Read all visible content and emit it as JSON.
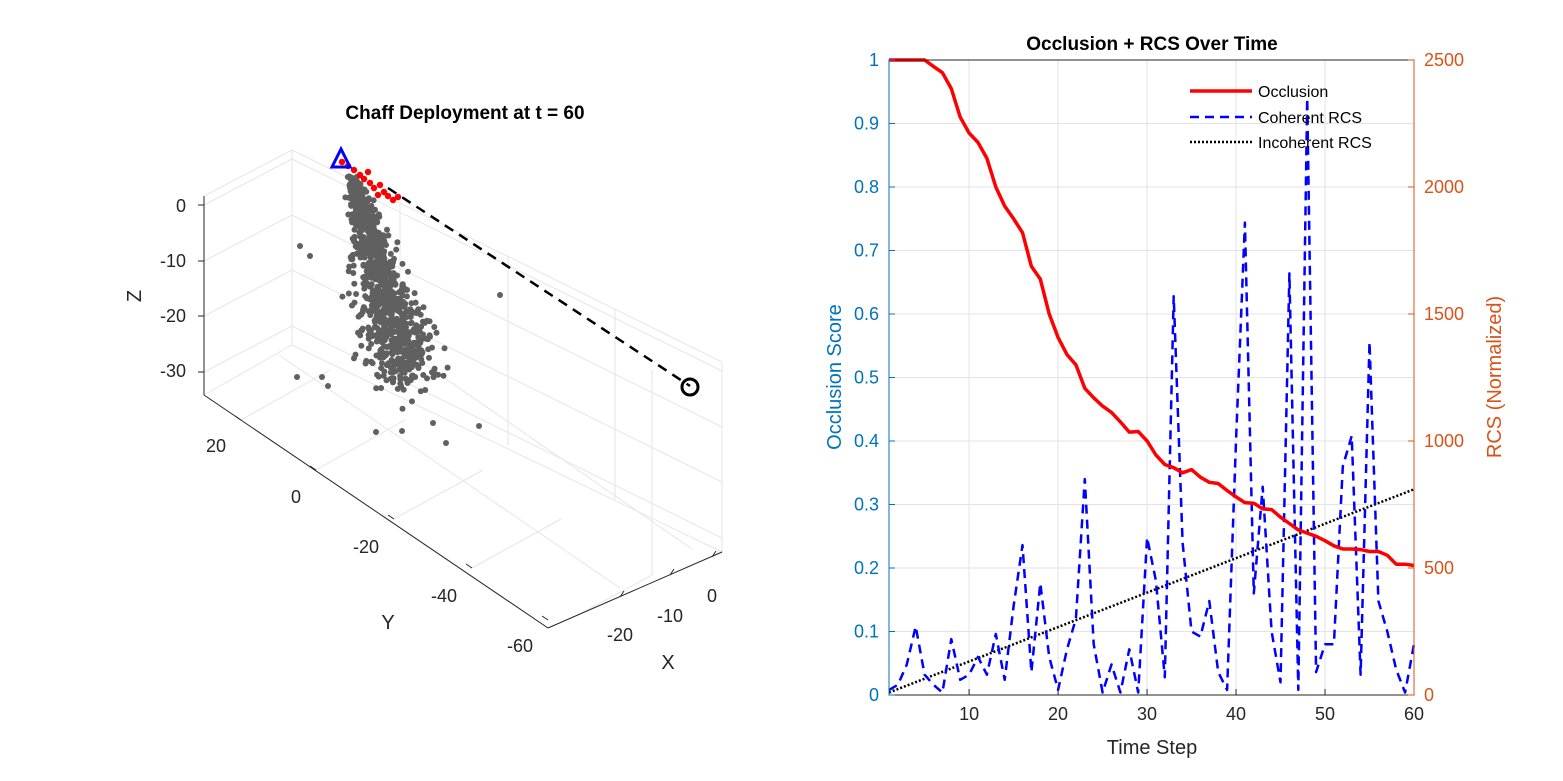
{
  "chart_data": [
    {
      "type": "scatter3d",
      "title": "Chaff Deployment at t = 60",
      "xlabel": "X",
      "ylabel": "Y",
      "zlabel": "Z",
      "x_ticks": [
        "-20",
        "-10",
        "0"
      ],
      "y_ticks": [
        "20",
        "0",
        "-20",
        "-40",
        "-60"
      ],
      "z_ticks": [
        "0",
        "-10",
        "-20",
        "-30"
      ],
      "grid": true,
      "markers": {
        "chaff_color": "#606060",
        "path_color": "#ff0000",
        "platform_marker": "triangle",
        "platform_color": "#0000ff",
        "radar_marker": "circle",
        "radar_color": "#000000",
        "line_of_sight_style": "dashed",
        "line_of_sight_color": "#000000"
      }
    },
    {
      "type": "line",
      "title": "Occlusion + RCS Over Time",
      "xlabel": "Time Step",
      "ylabel_left": "Occlusion Score",
      "ylabel_right": "RCS (Normalized)",
      "xlim": [
        1,
        60
      ],
      "ylim_left": [
        0,
        1
      ],
      "ylim_right": [
        0,
        2500
      ],
      "x_ticks": [
        10,
        20,
        30,
        40,
        50,
        60
      ],
      "y_ticks_left": [
        "0",
        "0.1",
        "0.2",
        "0.3",
        "0.4",
        "0.5",
        "0.6",
        "0.7",
        "0.8",
        "0.9",
        "1"
      ],
      "y_ticks_right": [
        "0",
        "500",
        "1000",
        "1500",
        "2000",
        "2500"
      ],
      "left_axis_color": "#0072bd",
      "right_axis_color": "#d95319",
      "grid": true,
      "legend_position": "top-right",
      "series": [
        {
          "name": "Occlusion",
          "axis": "left",
          "color": "#ff0000",
          "style": "solid",
          "x": [
            1,
            2,
            3,
            4,
            5,
            6,
            7,
            8,
            9,
            10,
            11,
            12,
            13,
            14,
            15,
            16,
            17,
            18,
            19,
            20,
            21,
            22,
            23,
            24,
            25,
            26,
            27,
            28,
            29,
            30,
            31,
            32,
            33,
            34,
            35,
            36,
            37,
            38,
            39,
            40,
            41,
            42,
            43,
            44,
            45,
            46,
            47,
            48,
            49,
            50,
            51,
            52,
            53,
            54,
            55,
            56,
            57,
            58,
            59,
            60
          ],
          "values": [
            1.0,
            1.0,
            1.0,
            1.0,
            1.0,
            0.99,
            0.98,
            0.955,
            0.91,
            0.885,
            0.87,
            0.845,
            0.8,
            0.77,
            0.75,
            0.728,
            0.675,
            0.655,
            0.6,
            0.563,
            0.536,
            0.52,
            0.483,
            0.468,
            0.455,
            0.445,
            0.43,
            0.414,
            0.415,
            0.4,
            0.378,
            0.363,
            0.358,
            0.35,
            0.355,
            0.343,
            0.335,
            0.333,
            0.322,
            0.312,
            0.303,
            0.302,
            0.293,
            0.292,
            0.28,
            0.27,
            0.26,
            0.255,
            0.25,
            0.243,
            0.235,
            0.23,
            0.23,
            0.229,
            0.226,
            0.226,
            0.22,
            0.206,
            0.206,
            0.204
          ]
        },
        {
          "name": "Coherent RCS",
          "axis": "right",
          "color": "#0000ff",
          "style": "dashed",
          "x": [
            1,
            2,
            3,
            4,
            5,
            6,
            7,
            8,
            9,
            10,
            11,
            12,
            13,
            14,
            15,
            16,
            17,
            18,
            19,
            20,
            21,
            22,
            23,
            24,
            25,
            26,
            27,
            28,
            29,
            30,
            31,
            32,
            33,
            34,
            35,
            36,
            37,
            38,
            39,
            40,
            41,
            42,
            43,
            44,
            45,
            46,
            47,
            48,
            49,
            50,
            51,
            52,
            53,
            54,
            55,
            56,
            57,
            58,
            59,
            60
          ],
          "values": [
            20,
            40,
            120,
            270,
            80,
            40,
            10,
            220,
            60,
            80,
            150,
            80,
            240,
            60,
            350,
            590,
            90,
            440,
            150,
            20,
            180,
            300,
            850,
            200,
            10,
            120,
            10,
            180,
            10,
            620,
            450,
            70,
            1570,
            600,
            250,
            230,
            370,
            90,
            20,
            1000,
            1860,
            400,
            820,
            250,
            50,
            1660,
            20,
            2350,
            90,
            200,
            200,
            900,
            1020,
            80,
            1390,
            370,
            250,
            100,
            10,
            200
          ]
        },
        {
          "name": "Incoherent RCS",
          "axis": "right",
          "color": "#000000",
          "style": "dotted",
          "x": [
            1,
            60
          ],
          "values": [
            10,
            810
          ]
        }
      ]
    }
  ]
}
